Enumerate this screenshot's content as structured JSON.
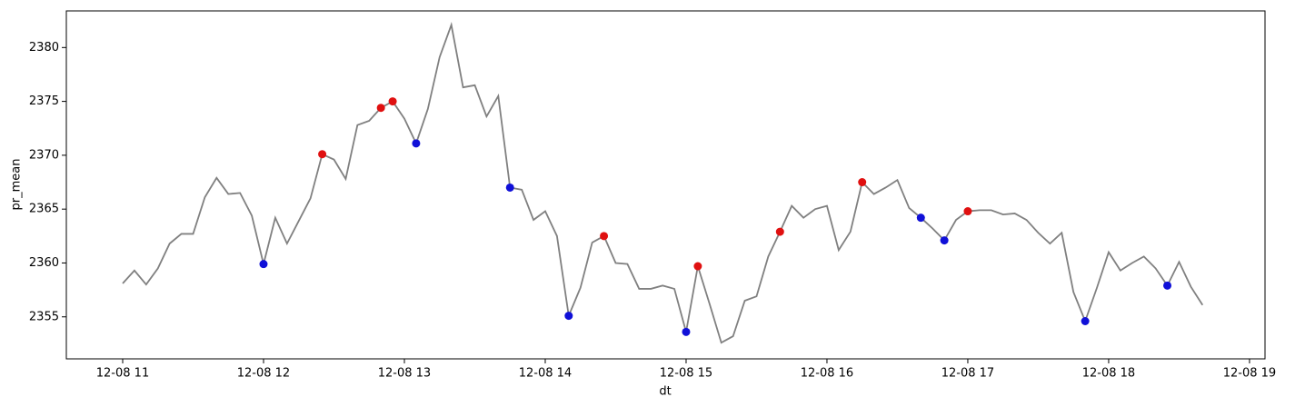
{
  "chart_data": {
    "type": "line",
    "x_label": "dt",
    "y_label": "pr_mean",
    "xlim": [
      -24,
      486.6
    ],
    "ylim": [
      2351.1,
      2383.4
    ],
    "xticks": [
      {
        "value": 0,
        "label": "12-08 11"
      },
      {
        "value": 60,
        "label": "12-08 12"
      },
      {
        "value": 120,
        "label": "12-08 13"
      },
      {
        "value": 180,
        "label": "12-08 14"
      },
      {
        "value": 240,
        "label": "12-08 15"
      },
      {
        "value": 300,
        "label": "12-08 16"
      },
      {
        "value": 360,
        "label": "12-08 17"
      },
      {
        "value": 420,
        "label": "12-08 18"
      },
      {
        "value": 480,
        "label": "12-08 19"
      }
    ],
    "yticks": [
      2355,
      2360,
      2365,
      2370,
      2375,
      2380
    ],
    "grid": false,
    "series": [
      {
        "type": "line",
        "color": "#808080",
        "x": [
          0,
          5,
          10,
          15,
          20,
          25,
          30,
          35,
          40,
          45,
          50,
          55,
          60,
          65,
          70,
          75,
          80,
          85,
          90,
          95,
          100,
          105,
          110,
          115,
          120,
          125,
          130,
          135,
          140,
          145,
          150,
          155,
          160,
          165,
          170,
          175,
          180,
          185,
          190,
          195,
          200,
          205,
          210,
          215,
          220,
          225,
          230,
          235,
          240,
          245,
          250,
          255,
          260,
          265,
          270,
          275,
          280,
          285,
          290,
          295,
          300,
          305,
          310,
          315,
          320,
          325,
          330,
          335,
          340,
          345,
          350,
          355,
          360,
          365,
          370,
          375,
          380,
          385,
          390,
          395,
          400,
          405,
          410,
          415,
          420,
          425,
          430,
          435,
          440,
          445,
          450,
          455,
          460
        ],
        "values": [
          2358.1,
          2359.3,
          2358.0,
          2359.5,
          2361.8,
          2362.7,
          2362.7,
          2366.1,
          2367.9,
          2366.4,
          2366.5,
          2364.4,
          2359.9,
          2364.2,
          2361.8,
          2363.9,
          2366.0,
          2370.1,
          2369.6,
          2367.8,
          2372.8,
          2373.2,
          2374.4,
          2375.0,
          2373.4,
          2371.1,
          2374.3,
          2379.1,
          2382.1,
          2376.3,
          2376.5,
          2373.6,
          2375.5,
          2367.0,
          2366.8,
          2364.0,
          2364.8,
          2362.5,
          2355.1,
          2357.7,
          2361.9,
          2362.5,
          2360.0,
          2359.9,
          2357.6,
          2357.6,
          2357.9,
          2357.6,
          2353.6,
          2359.7,
          2356.2,
          2352.6,
          2353.2,
          2356.5,
          2356.9,
          2360.6,
          2362.9,
          2365.3,
          2364.2,
          2365.0,
          2365.3,
          2361.2,
          2362.9,
          2367.5,
          2366.4,
          2367.0,
          2367.7,
          2365.1,
          2364.2,
          2363.2,
          2362.1,
          2364.0,
          2364.8,
          2364.9,
          2364.9,
          2364.5,
          2364.6,
          2364.0,
          2362.8,
          2361.8,
          2362.8,
          2357.3,
          2354.6,
          2357.7,
          2361.0,
          2359.3,
          2360.0,
          2360.6,
          2359.5,
          2357.9,
          2360.1,
          2357.8,
          2356.1
        ]
      },
      {
        "type": "scatter",
        "color": "#e01010",
        "x": [
          85,
          110,
          115,
          205,
          245,
          280,
          315,
          360
        ],
        "values": [
          2370.1,
          2374.4,
          2375.0,
          2362.5,
          2359.7,
          2362.9,
          2367.5,
          2364.8
        ]
      },
      {
        "type": "scatter",
        "color": "#1010d8",
        "x": [
          60,
          125,
          165,
          190,
          240,
          340,
          350,
          410,
          445
        ],
        "values": [
          2359.9,
          2371.1,
          2367.0,
          2355.1,
          2353.6,
          2364.2,
          2362.1,
          2354.6,
          2357.9
        ]
      }
    ]
  }
}
